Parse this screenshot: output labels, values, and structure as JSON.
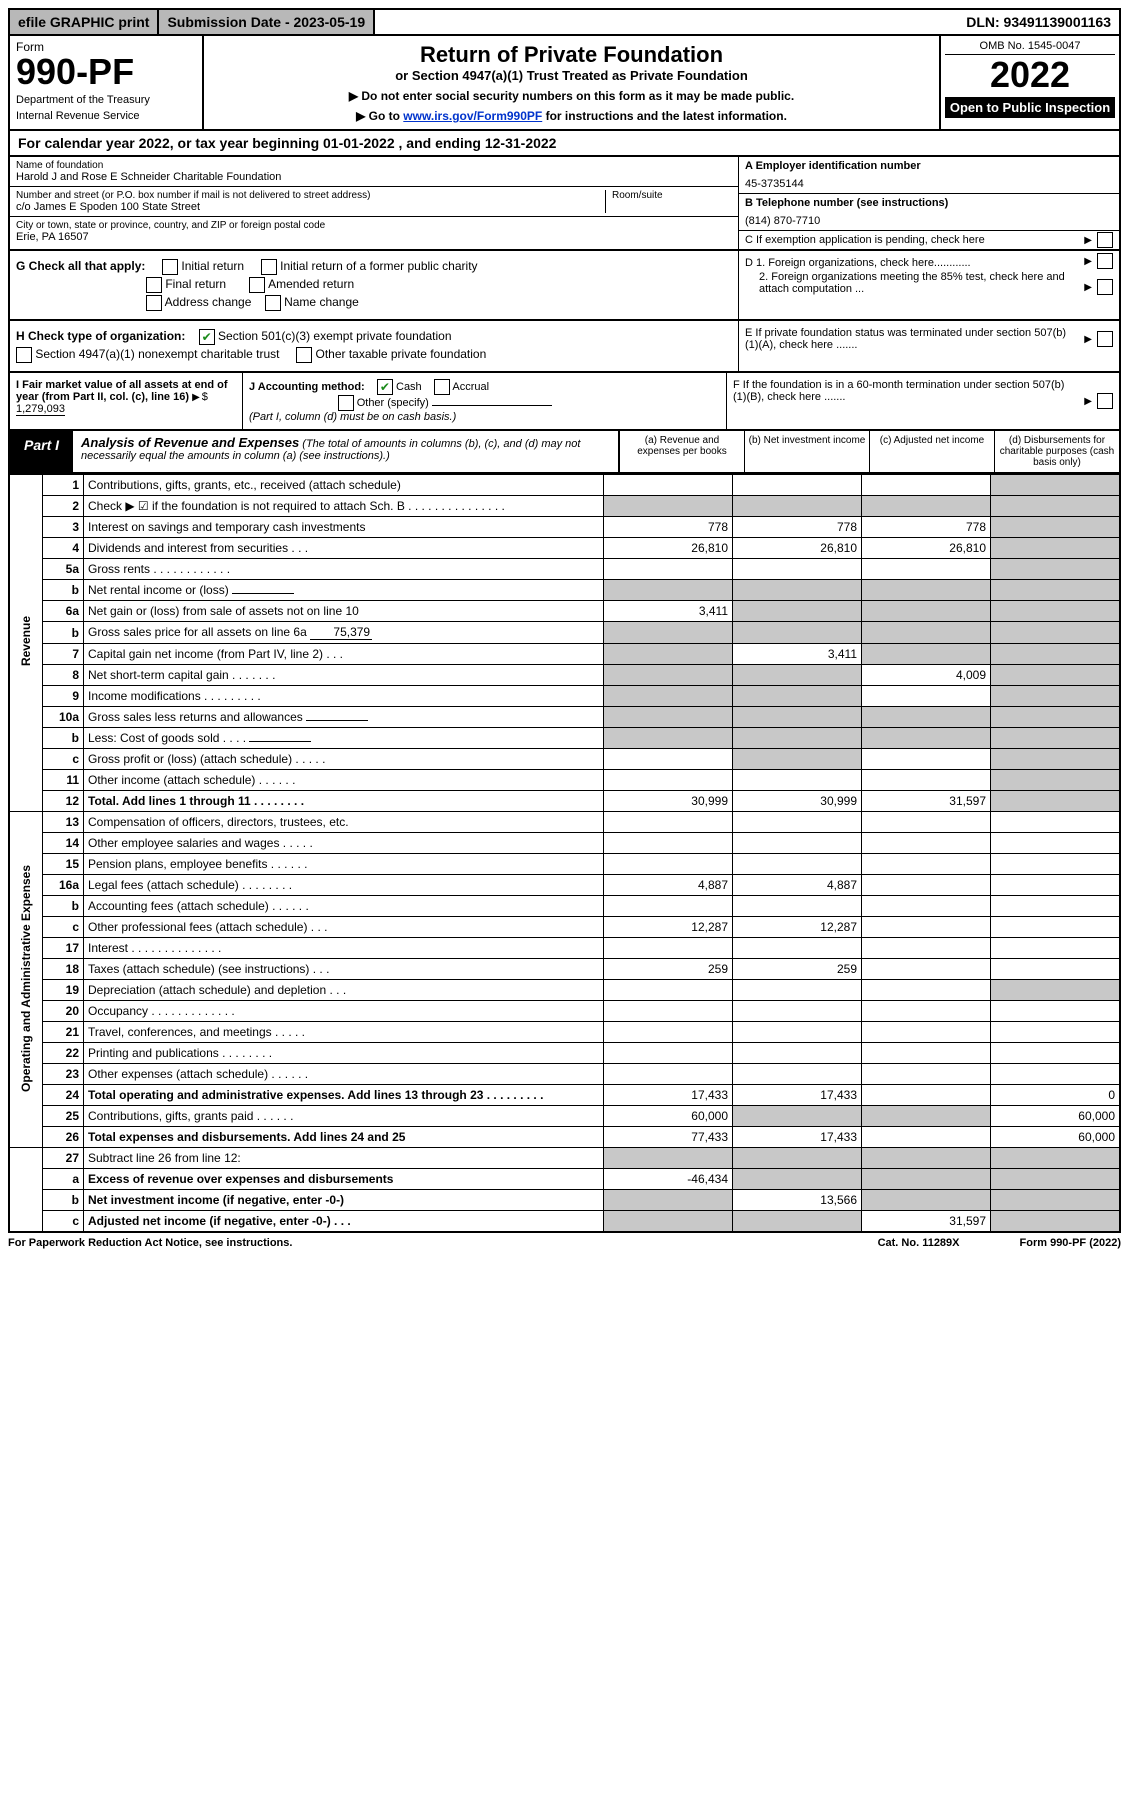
{
  "top": {
    "efile": "efile GRAPHIC print",
    "sub_date": "Submission Date - 2023-05-19",
    "dln": "DLN: 93491139001163"
  },
  "header": {
    "form": "Form",
    "form_num": "990-PF",
    "dept": "Department of the Treasury",
    "irs": "Internal Revenue Service",
    "title": "Return of Private Foundation",
    "subtitle": "or Section 4947(a)(1) Trust Treated as Private Foundation",
    "note1": "▶ Do not enter social security numbers on this form as it may be made public.",
    "note2_pre": "▶ Go to ",
    "note2_link": "www.irs.gov/Form990PF",
    "note2_post": " for instructions and the latest information.",
    "omb": "OMB No. 1545-0047",
    "year": "2022",
    "open": "Open to Public Inspection"
  },
  "cal_year": "For calendar year 2022, or tax year beginning 01-01-2022             , and ending 12-31-2022",
  "entity": {
    "name_label": "Name of foundation",
    "name": "Harold J and Rose E Schneider Charitable Foundation",
    "addr_label": "Number and street (or P.O. box number if mail is not delivered to street address)",
    "addr": "c/o James E Spoden 100 State Street",
    "room_label": "Room/suite",
    "city_label": "City or town, state or province, country, and ZIP or foreign postal code",
    "city": "Erie, PA  16507",
    "ein_label": "A Employer identification number",
    "ein": "45-3735144",
    "phone_label": "B Telephone number (see instructions)",
    "phone": "(814) 870-7710",
    "c_label": "C If exemption application is pending, check here"
  },
  "g": {
    "label": "G Check all that apply:",
    "initial": "Initial return",
    "initial_pub": "Initial return of a former public charity",
    "final": "Final return",
    "amended": "Amended return",
    "addr_change": "Address change",
    "name_change": "Name change"
  },
  "h": {
    "label": "H Check type of organization:",
    "opt1": "Section 501(c)(3) exempt private foundation",
    "opt2": "Section 4947(a)(1) nonexempt charitable trust",
    "opt3": "Other taxable private foundation"
  },
  "d": {
    "d1": "D 1. Foreign organizations, check here............",
    "d2": "2. Foreign organizations meeting the 85% test, check here and attach computation ..."
  },
  "e": "E If private foundation status was terminated under section 507(b)(1)(A), check here .......",
  "f": "F If the foundation is in a 60-month termination under section 507(b)(1)(B), check here .......",
  "i": {
    "label": "I Fair market value of all assets at end of year (from Part II, col. (c), line 16)",
    "value": "1,279,093"
  },
  "j": {
    "label": "J Accounting method:",
    "cash": "Cash",
    "accrual": "Accrual",
    "other": "Other (specify)",
    "note": "(Part I, column (d) must be on cash basis.)"
  },
  "part1": {
    "label": "Part I",
    "title": "Analysis of Revenue and Expenses",
    "note": "(The total of amounts in columns (b), (c), and (d) may not necessarily equal the amounts in column (a) (see instructions).)",
    "cols": {
      "a": "(a) Revenue and expenses per books",
      "b": "(b) Net investment income",
      "c": "(c) Adjusted net income",
      "d": "(d) Disbursements for charitable purposes (cash basis only)"
    }
  },
  "sections": {
    "rev": "Revenue",
    "exp": "Operating and Administrative Expenses"
  },
  "rows": [
    {
      "n": "1",
      "d": "Contributions, gifts, grants, etc., received (attach schedule)",
      "a": "",
      "b": "",
      "c": "",
      "dd": "",
      "grey_d": true
    },
    {
      "n": "2",
      "d": "Check ▶ ☑ if the foundation is not required to attach Sch. B   .   .   .   .   .   .   .   .   .   .   .   .   .   .   .",
      "a": "",
      "b": "",
      "c": "",
      "dd": "",
      "grey_a": true,
      "grey_b": true,
      "grey_c": true,
      "grey_d": true,
      "checked": true
    },
    {
      "n": "3",
      "d": "Interest on savings and temporary cash investments",
      "a": "778",
      "b": "778",
      "c": "778",
      "dd": "",
      "grey_d": true
    },
    {
      "n": "4",
      "d": "Dividends and interest from securities   .   .   .",
      "a": "26,810",
      "b": "26,810",
      "c": "26,810",
      "dd": "",
      "grey_d": true
    },
    {
      "n": "5a",
      "d": "Gross rents   .   .   .   .   .   .   .   .   .   .   .   .",
      "a": "",
      "b": "",
      "c": "",
      "dd": "",
      "grey_d": true
    },
    {
      "n": "b",
      "d": "Net rental income or (loss)",
      "a": "",
      "b": "",
      "c": "",
      "dd": "",
      "grey_a": true,
      "grey_b": true,
      "grey_c": true,
      "grey_d": true,
      "inline": true
    },
    {
      "n": "6a",
      "d": "Net gain or (loss) from sale of assets not on line 10",
      "a": "3,411",
      "b": "",
      "c": "",
      "dd": "",
      "grey_b": true,
      "grey_c": true,
      "grey_d": true
    },
    {
      "n": "b",
      "d": "Gross sales price for all assets on line 6a",
      "a": "",
      "b": "",
      "c": "",
      "dd": "",
      "grey_a": true,
      "grey_b": true,
      "grey_c": true,
      "grey_d": true,
      "inline": true,
      "inline_val": "75,379"
    },
    {
      "n": "7",
      "d": "Capital gain net income (from Part IV, line 2)   .   .   .",
      "a": "",
      "b": "3,411",
      "c": "",
      "dd": "",
      "grey_a": true,
      "grey_c": true,
      "grey_d": true
    },
    {
      "n": "8",
      "d": "Net short-term capital gain   .   .   .   .   .   .   .",
      "a": "",
      "b": "",
      "c": "4,009",
      "dd": "",
      "grey_a": true,
      "grey_b": true,
      "grey_d": true
    },
    {
      "n": "9",
      "d": "Income modifications   .   .   .   .   .   .   .   .   .",
      "a": "",
      "b": "",
      "c": "",
      "dd": "",
      "grey_a": true,
      "grey_b": true,
      "grey_d": true
    },
    {
      "n": "10a",
      "d": "Gross sales less returns and allowances",
      "a": "",
      "b": "",
      "c": "",
      "dd": "",
      "grey_a": true,
      "grey_b": true,
      "grey_c": true,
      "grey_d": true,
      "inline": true
    },
    {
      "n": "b",
      "d": "Less: Cost of goods sold   .   .   .   .",
      "a": "",
      "b": "",
      "c": "",
      "dd": "",
      "grey_a": true,
      "grey_b": true,
      "grey_c": true,
      "grey_d": true,
      "inline": true
    },
    {
      "n": "c",
      "d": "Gross profit or (loss) (attach schedule)   .   .   .   .   .",
      "a": "",
      "b": "",
      "c": "",
      "dd": "",
      "grey_b": true,
      "grey_d": true
    },
    {
      "n": "11",
      "d": "Other income (attach schedule)   .   .   .   .   .   .",
      "a": "",
      "b": "",
      "c": "",
      "dd": "",
      "grey_d": true
    },
    {
      "n": "12",
      "d": "Total. Add lines 1 through 11   .   .   .   .   .   .   .   .",
      "a": "30,999",
      "b": "30,999",
      "c": "31,597",
      "dd": "",
      "grey_d": true,
      "bold": true
    }
  ],
  "exp_rows": [
    {
      "n": "13",
      "d": "Compensation of officers, directors, trustees, etc.",
      "a": "",
      "b": "",
      "c": "",
      "dd": ""
    },
    {
      "n": "14",
      "d": "Other employee salaries and wages   .   .   .   .   .",
      "a": "",
      "b": "",
      "c": "",
      "dd": ""
    },
    {
      "n": "15",
      "d": "Pension plans, employee benefits   .   .   .   .   .   .",
      "a": "",
      "b": "",
      "c": "",
      "dd": ""
    },
    {
      "n": "16a",
      "d": "Legal fees (attach schedule)  .   .   .   .   .   .   .   .",
      "a": "4,887",
      "b": "4,887",
      "c": "",
      "dd": ""
    },
    {
      "n": "b",
      "d": "Accounting fees (attach schedule)   .   .   .   .   .   .",
      "a": "",
      "b": "",
      "c": "",
      "dd": ""
    },
    {
      "n": "c",
      "d": "Other professional fees (attach schedule)   .   .   .",
      "a": "12,287",
      "b": "12,287",
      "c": "",
      "dd": ""
    },
    {
      "n": "17",
      "d": "Interest  .   .   .   .   .   .   .   .   .   .   .   .   .   .",
      "a": "",
      "b": "",
      "c": "",
      "dd": ""
    },
    {
      "n": "18",
      "d": "Taxes (attach schedule) (see instructions)   .   .   .",
      "a": "259",
      "b": "259",
      "c": "",
      "dd": ""
    },
    {
      "n": "19",
      "d": "Depreciation (attach schedule) and depletion   .   .   .",
      "a": "",
      "b": "",
      "c": "",
      "dd": "",
      "grey_d": true
    },
    {
      "n": "20",
      "d": "Occupancy  .   .   .   .   .   .   .   .   .   .   .   .   .",
      "a": "",
      "b": "",
      "c": "",
      "dd": ""
    },
    {
      "n": "21",
      "d": "Travel, conferences, and meetings   .   .   .   .   .",
      "a": "",
      "b": "",
      "c": "",
      "dd": ""
    },
    {
      "n": "22",
      "d": "Printing and publications   .   .   .   .   .   .   .   .",
      "a": "",
      "b": "",
      "c": "",
      "dd": ""
    },
    {
      "n": "23",
      "d": "Other expenses (attach schedule)   .   .   .   .   .   .",
      "a": "",
      "b": "",
      "c": "",
      "dd": ""
    },
    {
      "n": "24",
      "d": "Total operating and administrative expenses. Add lines 13 through 23   .   .   .   .   .   .   .   .   .",
      "a": "17,433",
      "b": "17,433",
      "c": "",
      "dd": "0",
      "bold": true
    },
    {
      "n": "25",
      "d": "Contributions, gifts, grants paid   .   .   .   .   .   .",
      "a": "60,000",
      "b": "",
      "c": "",
      "dd": "60,000",
      "grey_b": true,
      "grey_c": true
    },
    {
      "n": "26",
      "d": "Total expenses and disbursements. Add lines 24 and 25",
      "a": "77,433",
      "b": "17,433",
      "c": "",
      "dd": "60,000",
      "bold": true
    }
  ],
  "bottom_rows": [
    {
      "n": "27",
      "d": "Subtract line 26 from line 12:",
      "a": "",
      "b": "",
      "c": "",
      "dd": "",
      "grey_a": true,
      "grey_b": true,
      "grey_c": true,
      "grey_d": true
    },
    {
      "n": "a",
      "d": "Excess of revenue over expenses and disbursements",
      "a": "-46,434",
      "b": "",
      "c": "",
      "dd": "",
      "bold": true,
      "grey_b": true,
      "grey_c": true,
      "grey_d": true
    },
    {
      "n": "b",
      "d": "Net investment income (if negative, enter -0-)",
      "a": "",
      "b": "13,566",
      "c": "",
      "dd": "",
      "bold": true,
      "grey_a": true,
      "grey_c": true,
      "grey_d": true
    },
    {
      "n": "c",
      "d": "Adjusted net income (if negative, enter -0-)   .   .   .",
      "a": "",
      "b": "",
      "c": "31,597",
      "dd": "",
      "bold": true,
      "grey_a": true,
      "grey_b": true,
      "grey_d": true
    }
  ],
  "footer": {
    "left": "For Paperwork Reduction Act Notice, see instructions.",
    "cat": "Cat. No. 11289X",
    "form": "Form 990-PF (2022)"
  }
}
